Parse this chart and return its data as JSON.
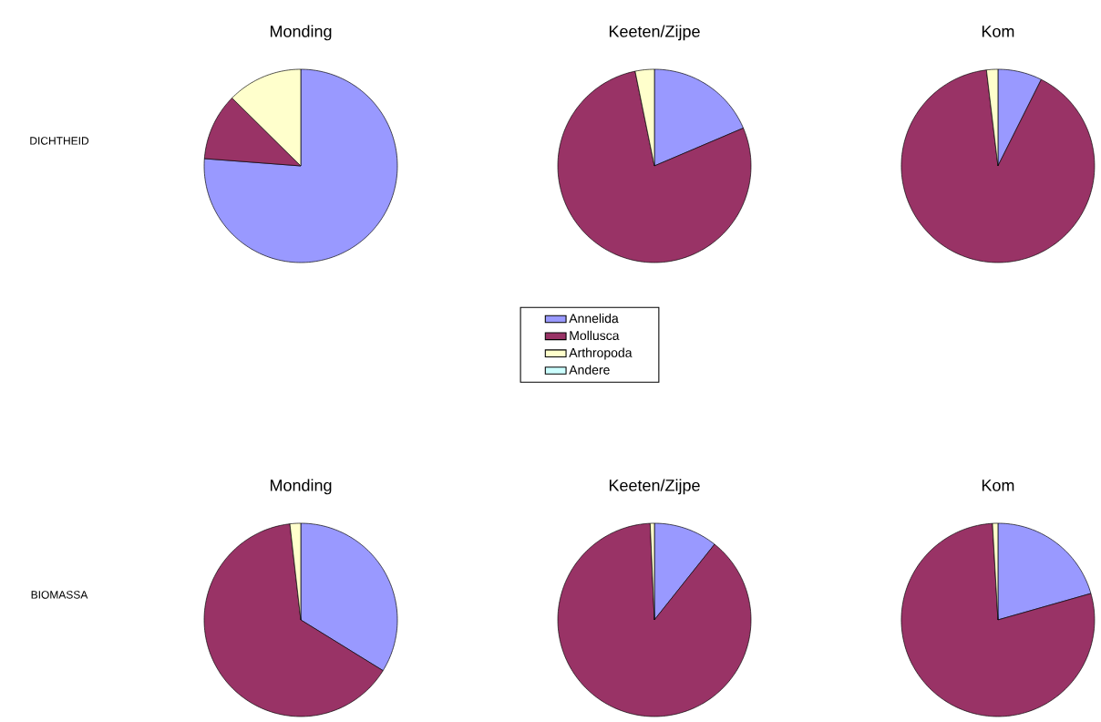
{
  "chart_data": [
    {
      "type": "pie",
      "title": "Monding",
      "annotations": [
        "DICHTHEID"
      ],
      "categories": [
        null,
        null,
        null,
        null
      ],
      "values": [
        76.2,
        11.2,
        12.6,
        0
      ],
      "colors": [
        "#9999ff",
        "#993366",
        "#ffffcc",
        "#ccffff"
      ]
    },
    {
      "type": "pie",
      "title": "Keeten/Zijpe",
      "legend": "bottom",
      "categories": [
        "Annelida",
        "Mollusca",
        "Arthropoda",
        "Andere"
      ],
      "values": [
        18.6,
        78.2,
        3.2,
        0
      ],
      "colors": [
        "#9999ff",
        "#993366",
        "#ffffcc",
        "#ccffff"
      ]
    },
    {
      "type": "pie",
      "title": "Kom",
      "categories": [
        null,
        null,
        null,
        null
      ],
      "values": [
        7.4,
        90.7,
        1.9,
        0
      ],
      "colors": [
        "#9999ff",
        "#993366",
        "#ffffcc",
        "#ccffff"
      ]
    },
    {
      "type": "pie",
      "title": "Monding",
      "annotations": [
        "BIOMASSA"
      ],
      "categories": [
        null,
        null,
        null,
        null
      ],
      "values": [
        33.8,
        64.4,
        1.8,
        0
      ],
      "colors": [
        "#9999ff",
        "#993366",
        "#ffffcc",
        "#ccffff"
      ]
    },
    {
      "type": "pie",
      "title": "Keeten/Zijpe",
      "categories": [
        null,
        null,
        null,
        null
      ],
      "values": [
        10.7,
        88.6,
        0.7,
        0
      ],
      "colors": [
        "#9999ff",
        "#993366",
        "#ffffcc",
        "#ccffff"
      ]
    },
    {
      "type": "pie",
      "title": "Kom",
      "categories": [
        null,
        null,
        null,
        null
      ],
      "values": [
        20.6,
        78.5,
        0.9,
        0
      ],
      "colors": [
        "#9999ff",
        "#993366",
        "#ffffcc",
        "#ccffff"
      ]
    }
  ]
}
